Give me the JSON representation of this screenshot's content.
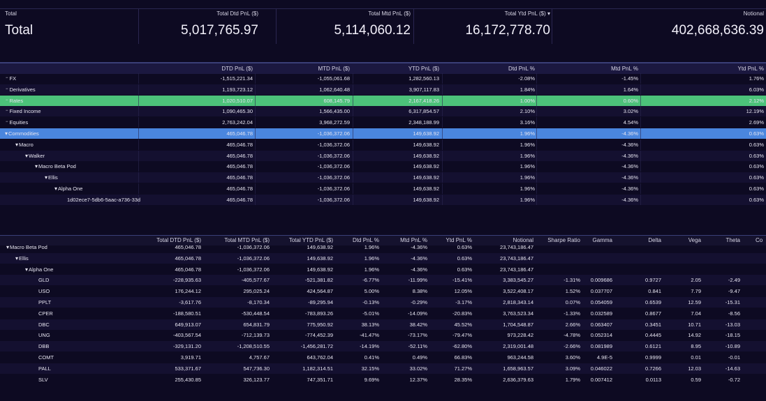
{
  "summary": {
    "headers": [
      "Total",
      "Total Dtd PnL ($)",
      "Total Mtd PnL ($)",
      "Total Ytd PnL ($) ▾",
      "Notional"
    ],
    "values": [
      "Total",
      "5,017,765.97",
      "5,114,060.12",
      "16,172,778.70",
      "402,668,636.39"
    ]
  },
  "pnl_table": {
    "headers": [
      "",
      "DTD PnL ($)",
      "MTD PnL ($)",
      "YTD PnL ($)",
      "Dtd PnL %",
      "Mtd PnL %",
      "Ytd PnL %"
    ],
    "rows": [
      [
        "FX",
        "-1,515,221.34",
        "-1,055,061.68",
        "1,282,560.13",
        "-2.08%",
        "-1.45%",
        "1.76%"
      ],
      [
        "Derivatives",
        "1,193,723.12",
        "1,062,640.48",
        "3,907,117.83",
        "1.84%",
        "1.64%",
        "6.03%"
      ],
      [
        "Rates",
        "1,020,510.07",
        "608,145.79",
        "2,167,418.26",
        "1.00%",
        "0.60%",
        "2.12%"
      ],
      [
        "Fixed Income",
        "1,090,465.30",
        "1,566,435.00",
        "6,317,854.57",
        "2.10%",
        "3.02%",
        "12.19%"
      ],
      [
        "Equities",
        "2,763,242.04",
        "3,968,272.59",
        "2,348,188.99",
        "3.16%",
        "4.54%",
        "2.69%"
      ],
      [
        "Commodities",
        "465,046.78",
        "-1,036,372.06",
        "149,638.92",
        "1.96%",
        "-4.36%",
        "0.63%"
      ],
      [
        "Macro",
        "465,046.78",
        "-1,036,372.06",
        "149,638.92",
        "1.96%",
        "-4.36%",
        "0.63%"
      ],
      [
        "Walker",
        "465,046.78",
        "-1,036,372.06",
        "149,638.92",
        "1.96%",
        "-4.36%",
        "0.63%"
      ],
      [
        "Macro Beta Pod",
        "465,046.78",
        "-1,036,372.06",
        "149,638.92",
        "1.96%",
        "-4.36%",
        "0.63%"
      ],
      [
        "Ellis",
        "465,046.78",
        "-1,036,372.06",
        "149,638.92",
        "1.96%",
        "-4.36%",
        "0.63%"
      ],
      [
        "Alpha One",
        "465,046.78",
        "-1,036,372.06",
        "149,638.92",
        "1.96%",
        "-4.36%",
        "0.63%"
      ],
      [
        "1d02ece7-5db6-5aac-a736-33d",
        "465,046.78",
        "-1,036,372.06",
        "149,638.92",
        "1.96%",
        "-4.36%",
        "0.63%"
      ]
    ]
  },
  "risk_table": {
    "headers": [
      "",
      "Total DTD PnL ($)",
      "Total MTD PnL ($)",
      "Total YTD PnL ($)",
      "Dtd PnL %",
      "Mtd PnL %",
      "Ytd PnL %",
      "Notional",
      "Sharpe Ratio",
      "Gamma",
      "Delta",
      "Vega",
      "Theta",
      "Co"
    ],
    "rows": [
      [
        "Macro Beta Pod",
        "465,046.78",
        "-1,036,372.06",
        "149,638.92",
        "1.96%",
        "-4.36%",
        "0.63%",
        "23,743,186.47"
      ],
      [
        "Ellis",
        "465,046.78",
        "-1,036,372.06",
        "149,638.92",
        "1.96%",
        "-4.36%",
        "0.63%",
        "23,743,186.47"
      ],
      [
        "Alpha One",
        "465,046.78",
        "-1,036,372.06",
        "149,638.92",
        "1.96%",
        "-4.36%",
        "0.63%",
        "23,743,186.47"
      ],
      [
        "GLD",
        "-228,935.63",
        "-405,577.67",
        "-521,381.82",
        "-6.77%",
        "-11.99%",
        "-15.41%",
        "3,383,545.27",
        "-1.31%",
        "0.009686",
        "0.9727",
        "2.05",
        "-2.49"
      ],
      [
        "USO",
        "176,244.12",
        "295,025.24",
        "424,564.87",
        "5.00%",
        "8.38%",
        "12.05%",
        "3,522,408.17",
        "1.52%",
        "0.037707",
        "0.841",
        "7.79",
        "-9.47"
      ],
      [
        "PPLT",
        "-3,617.76",
        "-8,170.34",
        "-89,295.94",
        "-0.13%",
        "-0.29%",
        "-3.17%",
        "2,818,343.14",
        "0.07%",
        "0.054059",
        "0.6539",
        "12.59",
        "-15.31"
      ],
      [
        "CPER",
        "-188,580.51",
        "-530,448.54",
        "-783,893.26",
        "-5.01%",
        "-14.09%",
        "-20.83%",
        "3,763,523.34",
        "-1.33%",
        "0.032589",
        "0.8677",
        "7.04",
        "-8.56"
      ],
      [
        "DBC",
        "649,913.07",
        "654,831.79",
        "775,950.92",
        "38.13%",
        "38.42%",
        "45.52%",
        "1,704,548.87",
        "2.66%",
        "0.063407",
        "0.3451",
        "10.71",
        "-13.03"
      ],
      [
        "UNG",
        "-403,567.54",
        "-712,139.73",
        "-774,452.39",
        "-41.47%",
        "-73.17%",
        "-79.47%",
        "973,228.42",
        "-4.78%",
        "0.052314",
        "0.4445",
        "14.92",
        "-18.15"
      ],
      [
        "DBB",
        "-329,131.20",
        "-1,208,510.55",
        "-1,456,281.72",
        "-14.19%",
        "-52.11%",
        "-62.80%",
        "2,319,001.48",
        "-2.66%",
        "0.081989",
        "0.6121",
        "8.95",
        "-10.89"
      ],
      [
        "COMT",
        "3,919.71",
        "4,757.67",
        "643,762.04",
        "0.41%",
        "0.49%",
        "66.83%",
        "963,244.58",
        "3.60%",
        "4.9E-5",
        "0.9999",
        "0.01",
        "-0.01"
      ],
      [
        "PALL",
        "533,371.67",
        "547,736.30",
        "1,182,314.51",
        "32.15%",
        "33.02%",
        "71.27%",
        "1,658,963.57",
        "3.09%",
        "0.046022",
        "0.7266",
        "12.03",
        "-14.63"
      ],
      [
        "SLV",
        "255,430.85",
        "326,123.77",
        "747,351.71",
        "9.69%",
        "12.37%",
        "28.35%",
        "2,636,379.63",
        "1.79%",
        "0.007412",
        "0.0113",
        "0.59",
        "-0.72"
      ]
    ]
  }
}
